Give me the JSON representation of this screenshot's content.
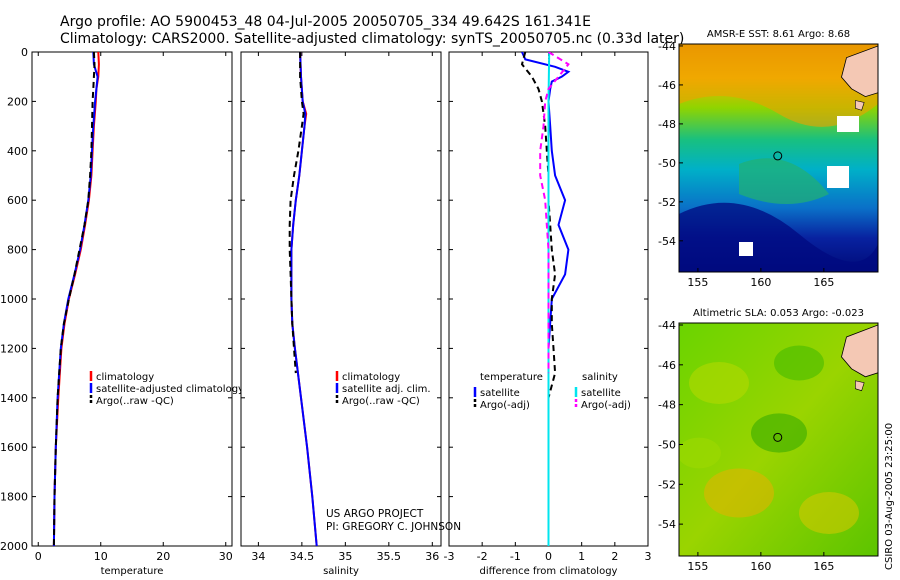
{
  "header": {
    "line1": "Argo profile: AO 5900453_48 04-Jul-2005 20050705_334 49.642S 161.341E",
    "line2": "Climatology: CARS2000. Satellite-adjusted climatology: synTS_20050705.nc (0.33d later)"
  },
  "colors": {
    "climatology": "#ff0000",
    "satellite": "#0000ff",
    "argo": "#000000",
    "salinity_diff": "#00e5ee",
    "salinity_argo": "#ff00ff",
    "land": "#f4c8b4"
  },
  "chart_data": [
    {
      "type": "line",
      "id": "temperature",
      "xlabel": "temperature",
      "xlim": [
        -1,
        31
      ],
      "ylim": [
        2000,
        0
      ],
      "xticks": [
        0,
        10,
        20,
        30
      ],
      "yticks": [
        0,
        200,
        400,
        600,
        800,
        1000,
        1200,
        1400,
        1600,
        1800,
        2000
      ],
      "legend": [
        "climatology",
        "satellite-adjusted climatology",
        "Argo(..raw -QC)"
      ],
      "series": [
        {
          "name": "climatology",
          "depth": [
            0,
            50,
            100,
            150,
            200,
            300,
            400,
            500,
            600,
            700,
            800,
            900,
            1000,
            1100,
            1200,
            1400,
            1600,
            1800,
            2000
          ],
          "values": [
            9.6,
            9.7,
            9.6,
            9.3,
            9.2,
            8.9,
            8.7,
            8.5,
            8.1,
            7.5,
            6.8,
            5.9,
            4.9,
            4.2,
            3.7,
            3.2,
            2.8,
            2.6,
            2.5
          ]
        },
        {
          "name": "satellite-adjusted climatology",
          "depth": [
            0,
            50,
            100,
            150,
            200,
            300,
            400,
            500,
            600,
            700,
            800,
            900,
            1000,
            1100,
            1200,
            1400,
            1600,
            1800,
            2000
          ],
          "values": [
            8.8,
            8.9,
            9.5,
            9.3,
            9.1,
            8.8,
            8.6,
            8.4,
            8.0,
            7.4,
            6.7,
            5.8,
            4.8,
            4.1,
            3.6,
            3.1,
            2.8,
            2.6,
            2.5
          ]
        },
        {
          "name": "Argo(..raw -QC)",
          "depth": [
            0,
            50,
            100,
            150,
            200,
            300,
            400,
            500,
            600,
            700,
            800,
            900,
            1000,
            1100,
            1200,
            1400,
            1600,
            1800,
            2000
          ],
          "values": [
            8.9,
            9.0,
            8.9,
            8.8,
            8.7,
            8.6,
            8.5,
            8.3,
            8.0,
            7.4,
            6.6,
            5.8,
            4.9,
            4.1,
            3.6,
            3.1,
            2.8,
            2.6,
            2.5
          ]
        }
      ]
    },
    {
      "type": "line",
      "id": "salinity",
      "xlabel": "salinity",
      "xlim": [
        33.8,
        36.1
      ],
      "ylim": [
        2000,
        0
      ],
      "xticks": [
        34,
        34.5,
        35,
        35.5,
        36
      ],
      "xticklabels": [
        "34",
        "34.5",
        "35",
        "35.5",
        "36"
      ],
      "legend": [
        "climatology",
        "satellite adj. clim.",
        "Argo(..raw -QC)"
      ],
      "series": [
        {
          "name": "climatology",
          "depth": [
            0,
            100,
            200,
            250,
            300,
            400,
            500,
            600,
            700,
            800,
            900,
            1000,
            1100,
            1200,
            1400,
            1600,
            1800,
            2000
          ],
          "values": [
            34.48,
            34.49,
            34.51,
            34.55,
            34.53,
            34.5,
            34.47,
            34.43,
            34.4,
            34.38,
            34.38,
            34.38,
            34.39,
            34.42,
            34.49,
            34.56,
            34.62,
            34.67
          ]
        },
        {
          "name": "satellite adj. clim.",
          "depth": [
            0,
            100,
            200,
            250,
            300,
            400,
            500,
            600,
            700,
            800,
            900,
            1000,
            1100,
            1200,
            1400,
            1600,
            1800,
            2000
          ],
          "values": [
            34.48,
            34.49,
            34.51,
            34.54,
            34.53,
            34.5,
            34.47,
            34.43,
            34.4,
            34.38,
            34.38,
            34.38,
            34.39,
            34.42,
            34.49,
            34.56,
            34.62,
            34.67
          ]
        },
        {
          "name": "Argo(..raw -QC)",
          "depth": [
            0,
            100,
            200,
            250,
            300,
            400,
            500,
            600,
            700,
            800,
            900,
            1000,
            1100,
            1200,
            1300
          ],
          "values": [
            34.48,
            34.48,
            34.5,
            34.52,
            34.5,
            34.46,
            34.41,
            34.37,
            34.36,
            34.36,
            34.37,
            34.38,
            34.39,
            34.41,
            34.43
          ]
        }
      ],
      "notes": [
        "US ARGO PROJECT",
        "PI: GREGORY C. JOHNSON"
      ]
    },
    {
      "type": "line",
      "id": "difference",
      "xlabel": "difference from climatology",
      "xlim": [
        -3,
        3
      ],
      "ylim": [
        2000,
        0
      ],
      "xticks": [
        -3,
        -2,
        -1,
        0,
        1,
        2,
        3
      ],
      "legend_left_title": "temperature",
      "legend_left": [
        "satellite",
        "Argo(-adj)"
      ],
      "legend_right_title": "salinity",
      "legend_right": [
        "satellite",
        "Argo(-adj)"
      ],
      "series": [
        {
          "name": "temperature satellite",
          "depth": [
            0,
            30,
            60,
            80,
            100,
            120,
            150,
            200,
            300,
            400,
            500,
            600,
            700,
            800,
            900,
            1000,
            1200,
            1400,
            1600,
            1800,
            2000
          ],
          "values": [
            -0.8,
            -0.7,
            0.2,
            0.6,
            0.4,
            0.1,
            0.05,
            0.0,
            0.05,
            0.1,
            0.2,
            0.5,
            0.3,
            0.6,
            0.5,
            0.1,
            0.0,
            0.0,
            0.0,
            0.0,
            0.0
          ]
        },
        {
          "name": "temperature Argo(-adj)",
          "depth": [
            0,
            50,
            100,
            150,
            200,
            300,
            400,
            500,
            600,
            700,
            800,
            900,
            1000,
            1100,
            1200,
            1300,
            1400,
            1500,
            1600,
            1800,
            2000
          ],
          "values": [
            -0.7,
            -0.8,
            -0.5,
            -0.3,
            -0.2,
            -0.1,
            -0.05,
            0.0,
            0.0,
            0.05,
            0.1,
            0.2,
            0.1,
            0.1,
            0.15,
            0.2,
            0.0,
            0.0,
            0.0,
            0.0,
            0.0
          ]
        },
        {
          "name": "salinity satellite",
          "depth": [
            0,
            200,
            400,
            600,
            800,
            1000,
            1200,
            1400,
            1600,
            1800,
            2000
          ],
          "values": [
            0.02,
            0.0,
            0.0,
            0.0,
            0.0,
            0.0,
            0.0,
            0.0,
            0.0,
            0.0,
            0.0
          ]
        },
        {
          "name": "salinity Argo(-adj)",
          "depth": [
            0,
            50,
            100,
            150,
            200,
            300,
            400,
            500,
            600,
            700,
            800,
            900,
            1000,
            1100,
            1200,
            1300
          ],
          "values": [
            0.0,
            0.6,
            0.3,
            0.0,
            -0.1,
            -0.15,
            -0.25,
            -0.25,
            -0.1,
            -0.05,
            0.0,
            0.0,
            0.0,
            0.0,
            0.0,
            0.0
          ]
        }
      ]
    }
  ],
  "maps": [
    {
      "id": "sst",
      "title": "AMSR-E SST: 8.61 Argo: 8.68",
      "lon_ticks": [
        155,
        160,
        165
      ],
      "lat_ticks": [
        -44,
        -46,
        -48,
        -50,
        -52,
        -54
      ],
      "float_position": {
        "lon": 161.341,
        "lat": -49.642
      }
    },
    {
      "id": "sla",
      "title": "Altimetric SLA: 0.053 Argo: -0.023",
      "lon_ticks": [
        155,
        160,
        165
      ],
      "lat_ticks": [
        -44,
        -46,
        -48,
        -50,
        -52,
        -54
      ],
      "float_position": {
        "lon": 161.341,
        "lat": -49.642
      }
    }
  ],
  "footer": {
    "vertical_credit": "CSIRO 03-Aug-2005 23:25:00"
  }
}
